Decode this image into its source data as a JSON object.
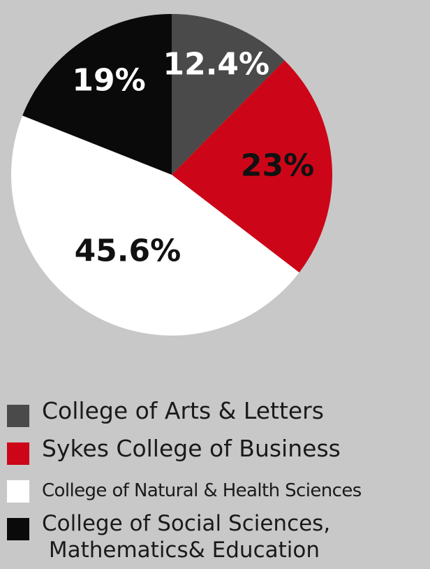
{
  "chart_data": {
    "type": "pie",
    "title": "",
    "categories": [
      "College of Arts & Letters",
      "Sykes College of Business",
      "College of Natural & Health Sciences",
      "College of Social Sciences,\n Mathematics& Education"
    ],
    "values": [
      12.4,
      23,
      45.6,
      19
    ],
    "data_labels": [
      "12.4%",
      "23%",
      "45.6%",
      "19%"
    ],
    "colors": [
      "#4a4a4a",
      "#cc0618",
      "#ffffff",
      "#0a0a0a"
    ],
    "label_colors": [
      "#ffffff",
      "#111111",
      "#111111",
      "#ffffff"
    ],
    "start": "12 o'clock",
    "direction": "clockwise",
    "legend_position": "bottom-left"
  },
  "legend": {
    "items": [
      {
        "label": "College of Arts & Letters",
        "color": "#4a4a4a"
      },
      {
        "label": "Sykes College of Business",
        "color": "#cc0618"
      },
      {
        "label": "College of Natural & Health Sciences",
        "color": "#ffffff"
      },
      {
        "label": "College of Social Sciences,\n Mathematics& Education",
        "color": "#0a0a0a"
      }
    ]
  }
}
